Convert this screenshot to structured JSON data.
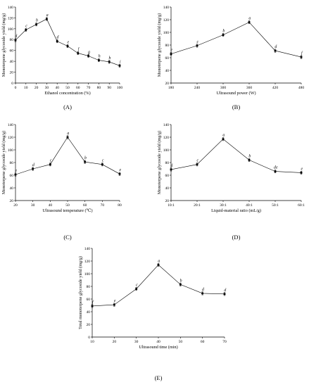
{
  "chart_data": [
    {
      "id": "A",
      "type": "line",
      "panel_label": "(A)",
      "xlabel": "Ethanol concentration (%)",
      "ylabel": "Monoterpene glycoside yield (mg/g)",
      "xlim": [
        0,
        100
      ],
      "ylim": [
        0,
        140
      ],
      "xticks": [
        0,
        10,
        20,
        30,
        40,
        50,
        60,
        70,
        80,
        90,
        100
      ],
      "yticks": [
        0,
        20,
        40,
        60,
        80,
        100,
        120,
        140
      ],
      "xtick_labels": [
        "0",
        "10",
        "20",
        "30",
        "40",
        "50",
        "60",
        "70",
        "80",
        "90",
        "100"
      ],
      "x": [
        0,
        10,
        20,
        30,
        40,
        50,
        60,
        70,
        80,
        90,
        100
      ],
      "y": [
        79,
        98,
        108,
        118,
        77,
        68,
        55,
        50,
        42,
        39,
        32
      ],
      "significance": [
        "d",
        "c",
        "b",
        "a",
        "d",
        "e",
        "f",
        "g",
        "h",
        "h",
        "i"
      ]
    },
    {
      "id": "B",
      "type": "line",
      "panel_label": "(B)",
      "xlabel": "Ultrasound power (W)",
      "ylabel": "Monoterpene glycoside yield (mg/g)",
      "xlim": [
        180,
        480
      ],
      "ylim": [
        20,
        140
      ],
      "xticks": [
        180,
        240,
        300,
        360,
        420,
        480
      ],
      "yticks": [
        20,
        40,
        60,
        80,
        100,
        120,
        140
      ],
      "xtick_labels": [
        "180",
        "240",
        "300",
        "360",
        "420",
        "480"
      ],
      "x": [
        180,
        240,
        300,
        360,
        420,
        480
      ],
      "y": [
        66,
        79,
        96,
        116,
        71,
        61
      ],
      "significance": [
        "e",
        "c",
        "b",
        "a",
        "d",
        "f"
      ]
    },
    {
      "id": "C",
      "type": "line",
      "panel_label": "(C)",
      "xlabel": "Ultrasound temperature (℃)",
      "ylabel": "Monoterpene glycoside yield (mg/g)",
      "xlim": [
        20,
        80
      ],
      "ylim": [
        20,
        140
      ],
      "xticks": [
        20,
        30,
        40,
        50,
        60,
        70,
        80
      ],
      "yticks": [
        20,
        40,
        60,
        80,
        100,
        120,
        140
      ],
      "xtick_labels": [
        "20",
        "30",
        "40",
        "50",
        "60",
        "70",
        "80"
      ],
      "x": [
        20,
        30,
        40,
        50,
        60,
        70,
        80
      ],
      "y": [
        61,
        70,
        77,
        120,
        81,
        77,
        62
      ],
      "significance": [
        "e",
        "d",
        "c",
        "a",
        "b",
        "c",
        "e"
      ]
    },
    {
      "id": "D",
      "type": "line",
      "panel_label": "(D)",
      "xlabel": "Liquid-material ratio (mL/g)",
      "ylabel": "Monoterpene glycoside yield (mg/g)",
      "xlim": [
        0,
        5
      ],
      "ylim": [
        20,
        140
      ],
      "xticks": [
        0,
        1,
        2,
        3,
        4,
        5
      ],
      "yticks": [
        20,
        40,
        60,
        80,
        100,
        120,
        140
      ],
      "xtick_labels": [
        "10:1",
        "20:1",
        "30:1",
        "40:1",
        "50:1",
        "60:1"
      ],
      "x": [
        0,
        1,
        2,
        3,
        4,
        5
      ],
      "y": [
        69,
        77,
        117,
        84,
        66,
        64
      ],
      "significance": [
        "d",
        "c",
        "a",
        "b",
        "de",
        "e"
      ]
    },
    {
      "id": "E",
      "type": "line",
      "panel_label": "(E)",
      "xlabel": "Ultrasound time (min)",
      "ylabel": "Total monoterpene glycoside yield (mg/g)",
      "xlim": [
        10,
        70
      ],
      "ylim": [
        0,
        140
      ],
      "xticks": [
        10,
        20,
        30,
        40,
        50,
        60,
        70
      ],
      "yticks": [
        0,
        20,
        40,
        60,
        80,
        100,
        120,
        140
      ],
      "xtick_labels": [
        "10",
        "20",
        "30",
        "40",
        "50",
        "60",
        "70"
      ],
      "x": [
        10,
        20,
        30,
        40,
        50,
        60,
        70
      ],
      "y": [
        49,
        51,
        76,
        114,
        83,
        69,
        68
      ],
      "significance": [
        "f",
        "e",
        "c",
        "a",
        "b",
        "d",
        "d"
      ]
    }
  ]
}
